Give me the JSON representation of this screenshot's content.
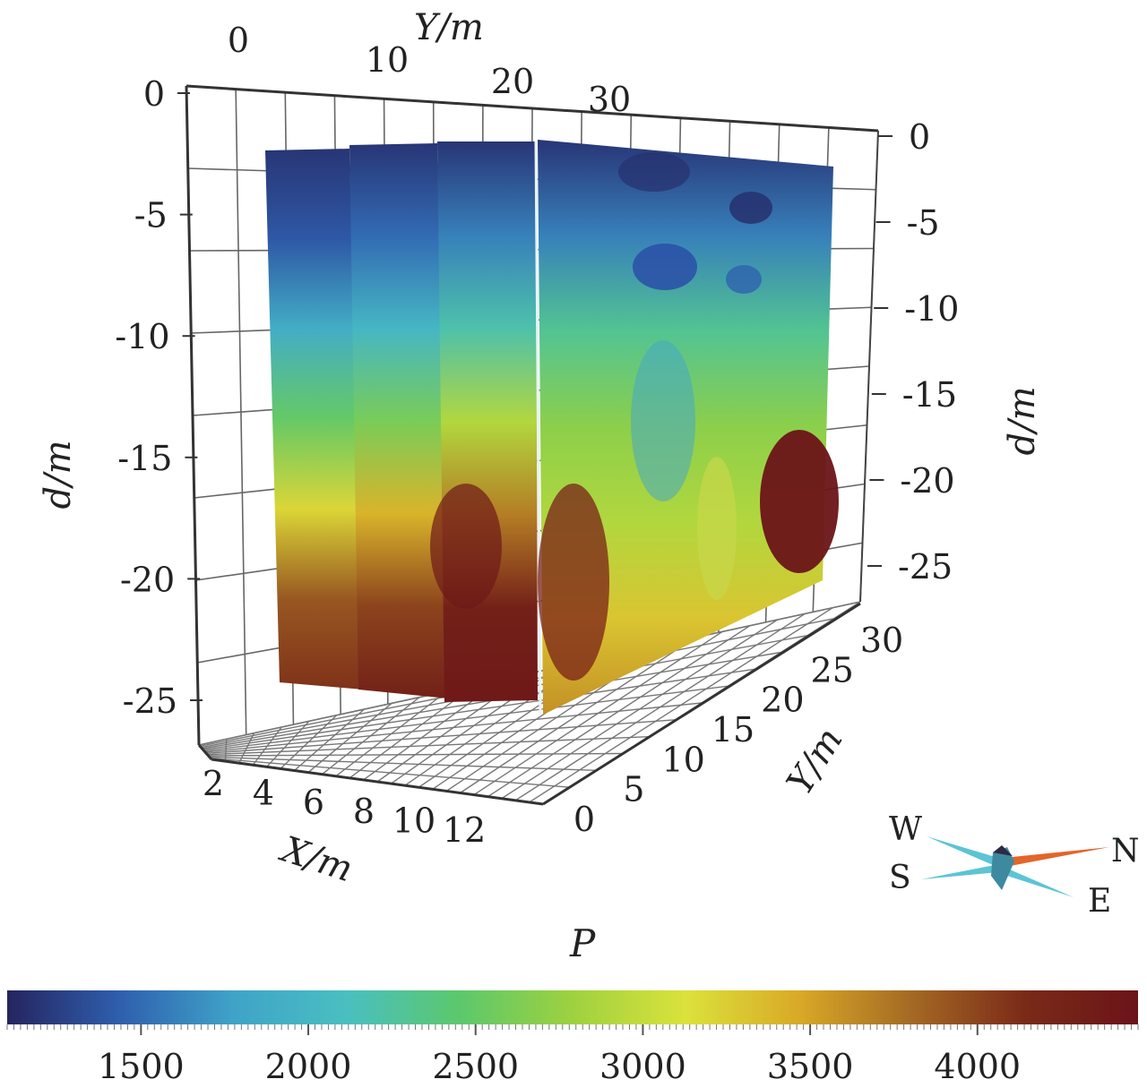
{
  "chart_data": {
    "type": "heatmap",
    "subtype": "3d-fence-slices",
    "quantity": "P",
    "axes": {
      "x": {
        "label": "X/m",
        "ticks": [
          "2",
          "4",
          "6",
          "8",
          "10",
          "12"
        ]
      },
      "y": {
        "label": "Y/m",
        "top_ticks": [
          "0",
          "10",
          "20",
          "30"
        ],
        "right_ticks": [
          "0",
          "5",
          "10",
          "15",
          "20",
          "25",
          "30"
        ]
      },
      "d": {
        "label": "d/m",
        "left_ticks": [
          "0",
          "-5",
          "-10",
          "-15",
          "-20",
          "-25"
        ],
        "right_ticks": [
          "0",
          "-5",
          "-10",
          "-15",
          "-20",
          "-25"
        ],
        "range": [
          -25,
          0
        ]
      }
    },
    "slices": [
      {
        "depth_profile": [
          1200,
          1400,
          1900,
          2500,
          3200,
          3900,
          4100
        ]
      },
      {
        "depth_profile": [
          1200,
          1500,
          2000,
          2600,
          3400,
          4000,
          4300
        ]
      },
      {
        "depth_profile": [
          1200,
          1600,
          2200,
          2900,
          3700,
          4300,
          4400
        ]
      },
      {
        "depth_profile": [
          1200,
          1600,
          2300,
          2700,
          2900,
          3300,
          3600
        ]
      }
    ],
    "colorbar": {
      "title": "P",
      "ticks": [
        "1500",
        "2000",
        "2500",
        "3000",
        "3500",
        "4000"
      ],
      "tick_values": [
        1500,
        2000,
        2500,
        3000,
        3500,
        4000
      ],
      "range": [
        1100,
        4480
      ],
      "colors": [
        "#25245f",
        "#2f5fae",
        "#3fa3c8",
        "#49bfc1",
        "#5cc86c",
        "#9ed13f",
        "#dbe23b",
        "#d9a927",
        "#a46924",
        "#7a2a18",
        "#6b1418"
      ]
    },
    "compass": {
      "labels": [
        "W",
        "N",
        "S",
        "E"
      ]
    }
  }
}
